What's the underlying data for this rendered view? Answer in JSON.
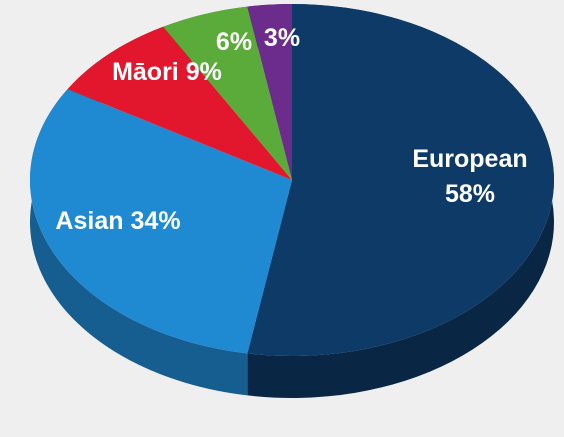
{
  "chart_data": {
    "type": "pie",
    "categories": [
      "European",
      "Asian",
      "Māori",
      null,
      null
    ],
    "values": [
      58,
      34,
      9,
      6,
      3
    ],
    "value_labels": [
      "58%",
      "34%",
      "9%",
      "6%",
      "3%"
    ],
    "colors": [
      "#0d3a66",
      "#1f8ad2",
      "#e2162c",
      "#5aab3a",
      "#6b2c8c"
    ]
  }
}
